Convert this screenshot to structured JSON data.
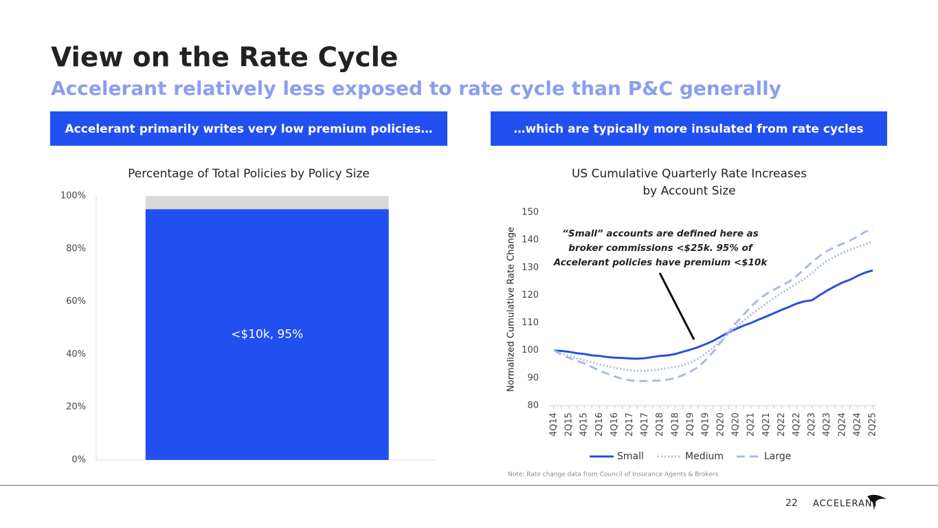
{
  "slide": {
    "title": "View on the Rate Cycle",
    "subtitle": "Accelerant relatively less exposed to rate cycle than P&C generally",
    "banners": [
      "Accelerant primarily writes very low premium policies…",
      "…which are typically more insulated from rate cycles"
    ],
    "note": "Note: Rate change data from Council of Insurance Agents & Brokers",
    "page_number": 22,
    "logo": "ACCELERANT"
  },
  "chart_data": [
    {
      "type": "stacked_bar",
      "title": "Percentage of Total Policies by Policy Size",
      "categories": [
        null
      ],
      "series": [
        {
          "color": "#2250f0",
          "values": [
            95
          ],
          "value_labels": [
            "<$10k, 95%"
          ]
        },
        {
          "color": "#d9d9d9",
          "values": [
            5
          ]
        }
      ],
      "ylim": [
        0,
        100
      ],
      "yticks": [
        {
          "value": 0,
          "label": "0%"
        },
        {
          "value": 20,
          "label": "20%"
        },
        {
          "value": 40,
          "label": "40%"
        },
        {
          "value": 60,
          "label": "60%"
        },
        {
          "value": 80,
          "label": "80%"
        },
        {
          "value": 100,
          "label": "100%"
        }
      ],
      "grid": false
    },
    {
      "type": "line",
      "title": [
        "US Cumulative Quarterly Rate Increases",
        "by Account Size"
      ],
      "y_label": "Normalized Cumulative Rate Change",
      "annotation": [
        "“Small” accounts are defined here as",
        "broker commissions <$25k. 95% of",
        "Accelerant policies have premium <$10k"
      ],
      "categories": [
        "4Q14",
        null,
        "2Q15",
        null,
        "4Q15",
        null,
        "2Q16",
        null,
        "4Q16",
        null,
        "2Q17",
        null,
        "4Q17",
        null,
        "2Q18",
        null,
        "4Q18",
        null,
        "2Q19",
        null,
        "4Q19",
        null,
        "2Q20",
        null,
        "4Q20",
        null,
        "2Q21",
        null,
        "4Q21",
        null,
        "2Q22",
        null,
        "4Q22",
        null,
        "2Q23",
        null,
        "4Q23",
        null,
        "2Q24",
        null,
        "4Q24",
        null,
        "2Q25"
      ],
      "series": [
        {
          "name": "Small",
          "color": "#2a4fd8",
          "style": "solid",
          "values": [
            100,
            99.8,
            99.5,
            99,
            98.7,
            98.2,
            98,
            97.6,
            97.4,
            97.3,
            97.1,
            97,
            97.2,
            97.6,
            98,
            98.2,
            98.7,
            99.5,
            100.3,
            101.2,
            102.3,
            103.5,
            105,
            106.5,
            107.8,
            109,
            110,
            111.2,
            112.3,
            113.5,
            114.7,
            115.8,
            117,
            117.8,
            118.2,
            120,
            121.7,
            123.2,
            124.6,
            125.6,
            127,
            128.2,
            129
          ]
        },
        {
          "name": "Medium",
          "color": "#a9b8ef",
          "style": "dotted",
          "values": [
            100,
            98.8,
            98,
            97.2,
            96.5,
            95.8,
            95,
            94.3,
            93.7,
            93.2,
            92.8,
            92.6,
            92.6,
            92.8,
            93.2,
            93.6,
            94,
            94.6,
            95.6,
            97,
            98.8,
            101,
            103.5,
            106,
            108.5,
            110.8,
            113,
            115,
            117,
            119,
            120.8,
            122.5,
            124.3,
            126,
            128,
            130.5,
            132.5,
            134,
            135.3,
            136.5,
            137.5,
            138.5,
            139.5
          ]
        },
        {
          "name": "Large",
          "color": "#a9b8ef",
          "style": "dashed",
          "values": [
            100,
            98.5,
            97.3,
            96.2,
            95.3,
            94,
            92.7,
            91.6,
            90.6,
            89.7,
            89.2,
            88.9,
            88.9,
            89,
            89.1,
            89.4,
            90,
            91,
            92.3,
            94,
            96.5,
            99.5,
            103,
            106.5,
            110,
            113,
            116,
            118.5,
            120.5,
            122,
            123.5,
            125,
            127,
            129.5,
            132,
            134.2,
            136,
            137.5,
            138.6,
            139.8,
            141.3,
            143,
            144
          ]
        }
      ],
      "ylim": [
        80,
        150
      ],
      "yticks": [
        80,
        90,
        100,
        110,
        120,
        130,
        140,
        150
      ],
      "grid": false,
      "legend": "bottom"
    }
  ]
}
